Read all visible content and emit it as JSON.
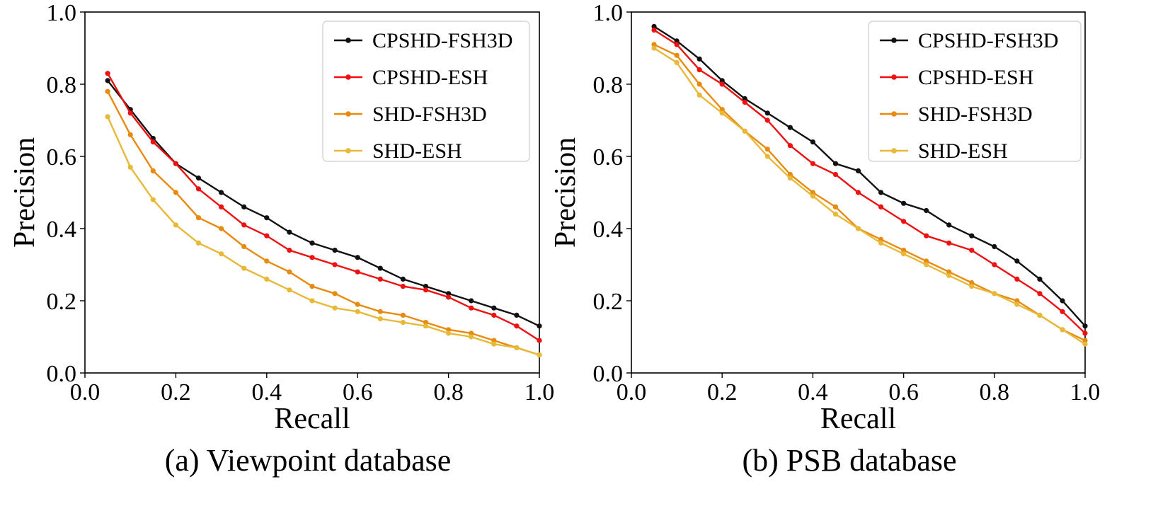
{
  "chart_data": [
    {
      "type": "line",
      "caption": "(a) Viewpoint database",
      "title": "",
      "xlabel": "Recall",
      "ylabel": "Precision",
      "xlim": [
        0.0,
        1.0
      ],
      "ylim": [
        0.0,
        1.0
      ],
      "xticks": [
        "0.0",
        "0.2",
        "0.4",
        "0.6",
        "0.8",
        "1.0"
      ],
      "yticks": [
        "0.0",
        "0.2",
        "0.4",
        "0.6",
        "0.8",
        "1.0"
      ],
      "grid": false,
      "legend_position": "top-right",
      "x": [
        0.05,
        0.1,
        0.15,
        0.2,
        0.25,
        0.3,
        0.35,
        0.4,
        0.45,
        0.5,
        0.55,
        0.6,
        0.65,
        0.7,
        0.75,
        0.8,
        0.85,
        0.9,
        0.95,
        1.0
      ],
      "series": [
        {
          "name": "CPSHD-FSH3D",
          "color": "#111111",
          "values": [
            0.81,
            0.73,
            0.65,
            0.58,
            0.54,
            0.5,
            0.46,
            0.43,
            0.39,
            0.36,
            0.34,
            0.32,
            0.29,
            0.26,
            0.24,
            0.22,
            0.2,
            0.18,
            0.16,
            0.13
          ]
        },
        {
          "name": "CPSHD-ESH",
          "color": "#ee1111",
          "values": [
            0.83,
            0.72,
            0.64,
            0.58,
            0.51,
            0.46,
            0.41,
            0.38,
            0.34,
            0.32,
            0.3,
            0.28,
            0.26,
            0.24,
            0.23,
            0.21,
            0.18,
            0.16,
            0.13,
            0.09
          ]
        },
        {
          "name": "SHD-FSH3D",
          "color": "#e88a10",
          "values": [
            0.78,
            0.66,
            0.56,
            0.5,
            0.43,
            0.4,
            0.35,
            0.31,
            0.28,
            0.24,
            0.22,
            0.19,
            0.17,
            0.16,
            0.14,
            0.12,
            0.11,
            0.09,
            0.07,
            0.05
          ]
        },
        {
          "name": "SHD-ESH",
          "color": "#e8b838",
          "values": [
            0.71,
            0.57,
            0.48,
            0.41,
            0.36,
            0.33,
            0.29,
            0.26,
            0.23,
            0.2,
            0.18,
            0.17,
            0.15,
            0.14,
            0.13,
            0.11,
            0.1,
            0.08,
            0.07,
            0.05
          ]
        }
      ]
    },
    {
      "type": "line",
      "caption": "(b) PSB database",
      "title": "",
      "xlabel": "Recall",
      "ylabel": "Precision",
      "xlim": [
        0.0,
        1.0
      ],
      "ylim": [
        0.0,
        1.0
      ],
      "xticks": [
        "0.0",
        "0.2",
        "0.4",
        "0.6",
        "0.8",
        "1.0"
      ],
      "yticks": [
        "0.0",
        "0.2",
        "0.4",
        "0.6",
        "0.8",
        "1.0"
      ],
      "grid": false,
      "legend_position": "top-right",
      "x": [
        0.05,
        0.1,
        0.15,
        0.2,
        0.25,
        0.3,
        0.35,
        0.4,
        0.45,
        0.5,
        0.55,
        0.6,
        0.65,
        0.7,
        0.75,
        0.8,
        0.85,
        0.9,
        0.95,
        1.0
      ],
      "series": [
        {
          "name": "CPSHD-FSH3D",
          "color": "#111111",
          "values": [
            0.96,
            0.92,
            0.87,
            0.81,
            0.76,
            0.72,
            0.68,
            0.64,
            0.58,
            0.56,
            0.5,
            0.47,
            0.45,
            0.41,
            0.38,
            0.35,
            0.31,
            0.26,
            0.2,
            0.13
          ]
        },
        {
          "name": "CPSHD-ESH",
          "color": "#ee1111",
          "values": [
            0.95,
            0.91,
            0.84,
            0.8,
            0.75,
            0.7,
            0.63,
            0.58,
            0.55,
            0.5,
            0.46,
            0.42,
            0.38,
            0.36,
            0.34,
            0.3,
            0.26,
            0.22,
            0.17,
            0.11
          ]
        },
        {
          "name": "SHD-FSH3D",
          "color": "#e88a10",
          "values": [
            0.91,
            0.88,
            0.8,
            0.73,
            0.67,
            0.62,
            0.55,
            0.5,
            0.46,
            0.4,
            0.37,
            0.34,
            0.31,
            0.28,
            0.25,
            0.22,
            0.2,
            0.16,
            0.12,
            0.09
          ]
        },
        {
          "name": "SHD-ESH",
          "color": "#e8b838",
          "values": [
            0.9,
            0.86,
            0.77,
            0.72,
            0.67,
            0.6,
            0.54,
            0.49,
            0.44,
            0.4,
            0.36,
            0.33,
            0.3,
            0.27,
            0.24,
            0.22,
            0.19,
            0.16,
            0.12,
            0.08
          ]
        }
      ]
    }
  ]
}
